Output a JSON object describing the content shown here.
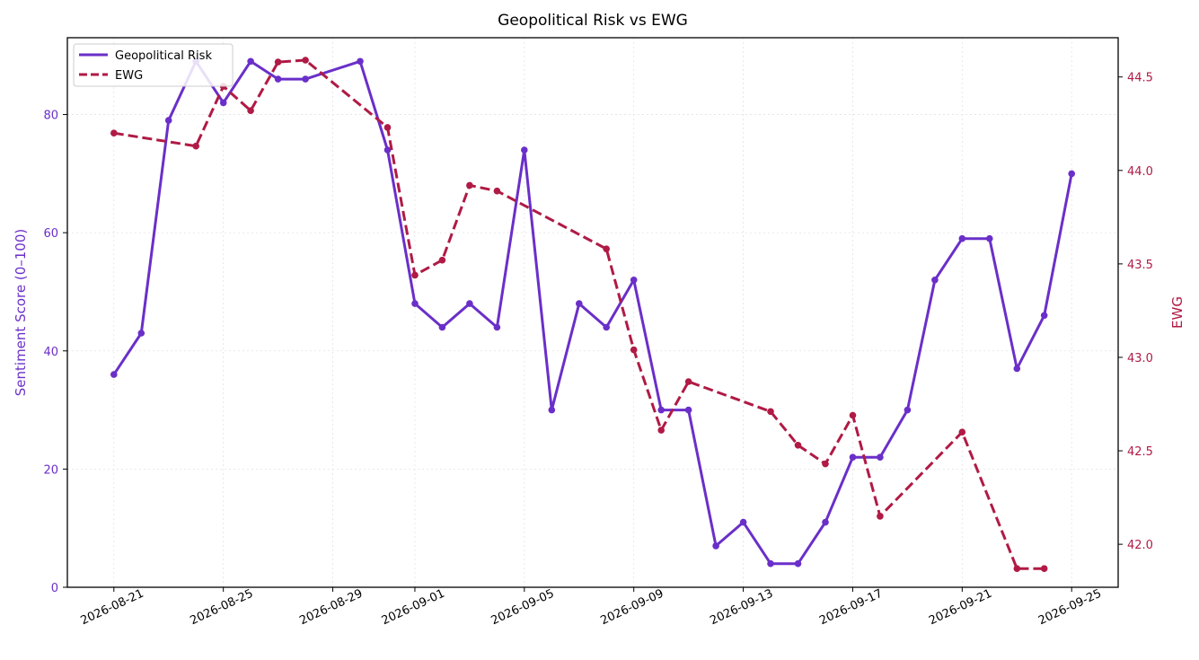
{
  "chart_data": {
    "type": "line",
    "title": "Geopolitical Risk vs EWG",
    "xlabel": "",
    "ylabel_left": "Sentiment Score (0–100)",
    "ylabel_right": "EWG",
    "x_ticks": [
      "2026-08-21",
      "2026-08-25",
      "2026-08-29",
      "2026-09-01",
      "2026-09-05",
      "2026-09-09",
      "2026-09-13",
      "2026-09-17",
      "2026-09-21",
      "2026-09-25"
    ],
    "y_left_ticks": [
      "0",
      "20",
      "40",
      "60",
      "80"
    ],
    "y_right_ticks": [
      "42.0",
      "42.5",
      "43.0",
      "43.5",
      "44.0",
      "44.5"
    ],
    "ylim_left": [
      0,
      93
    ],
    "ylim_right": [
      41.77,
      44.71
    ],
    "xlim": [
      "2026-08-19 07:12",
      "2026-09-26 16:48"
    ],
    "grid": true,
    "legend_position": "top-left",
    "colors": {
      "risk": "#6a2fc9",
      "ewg": "#b01a45"
    },
    "series": [
      {
        "name": "Geopolitical Risk",
        "axis": "left",
        "style": "solid",
        "points": [
          [
            "2026-08-21",
            36
          ],
          [
            "2026-08-22",
            43
          ],
          [
            "2026-08-23",
            79
          ],
          [
            "2026-08-24",
            89
          ],
          [
            "2026-08-25",
            82
          ],
          [
            "2026-08-26",
            89
          ],
          [
            "2026-08-27",
            86
          ],
          [
            "2026-08-28",
            86
          ],
          [
            "2026-08-30",
            89
          ],
          [
            "2026-08-31",
            74
          ],
          [
            "2026-09-01",
            48
          ],
          [
            "2026-09-02",
            44
          ],
          [
            "2026-09-03",
            48
          ],
          [
            "2026-09-04",
            44
          ],
          [
            "2026-09-05",
            74
          ],
          [
            "2026-09-06",
            30
          ],
          [
            "2026-09-07",
            48
          ],
          [
            "2026-09-08",
            44
          ],
          [
            "2026-09-09",
            52
          ],
          [
            "2026-09-10",
            30
          ],
          [
            "2026-09-11",
            30
          ],
          [
            "2026-09-12",
            7
          ],
          [
            "2026-09-13",
            11
          ],
          [
            "2026-09-14",
            4
          ],
          [
            "2026-09-15",
            4
          ],
          [
            "2026-09-16",
            11
          ],
          [
            "2026-09-17",
            22
          ],
          [
            "2026-09-18",
            22
          ],
          [
            "2026-09-19",
            30
          ],
          [
            "2026-09-20",
            52
          ],
          [
            "2026-09-21",
            59
          ],
          [
            "2026-09-22",
            59
          ],
          [
            "2026-09-23",
            37
          ],
          [
            "2026-09-24",
            46
          ],
          [
            "2026-09-25",
            70
          ]
        ]
      },
      {
        "name": "EWG",
        "axis": "right",
        "style": "dashed",
        "points": [
          [
            "2026-08-21",
            44.2
          ],
          [
            "2026-08-24",
            44.13
          ],
          [
            "2026-08-25",
            44.45
          ],
          [
            "2026-08-26",
            44.32
          ],
          [
            "2026-08-27",
            44.58
          ],
          [
            "2026-08-28",
            44.59
          ],
          [
            "2026-08-31",
            44.23
          ],
          [
            "2026-09-01",
            43.44
          ],
          [
            "2026-09-02",
            43.52
          ],
          [
            "2026-09-03",
            43.92
          ],
          [
            "2026-09-04",
            43.89
          ],
          [
            "2026-09-08",
            43.58
          ],
          [
            "2026-09-09",
            43.04
          ],
          [
            "2026-09-10",
            42.61
          ],
          [
            "2026-09-11",
            42.87
          ],
          [
            "2026-09-14",
            42.71
          ],
          [
            "2026-09-15",
            42.53
          ],
          [
            "2026-09-16",
            42.43
          ],
          [
            "2026-09-17",
            42.69
          ],
          [
            "2026-09-18",
            42.15
          ],
          [
            "2026-09-21",
            42.6
          ],
          [
            "2026-09-23",
            41.87
          ],
          [
            "2026-09-24",
            41.87
          ]
        ]
      }
    ]
  }
}
